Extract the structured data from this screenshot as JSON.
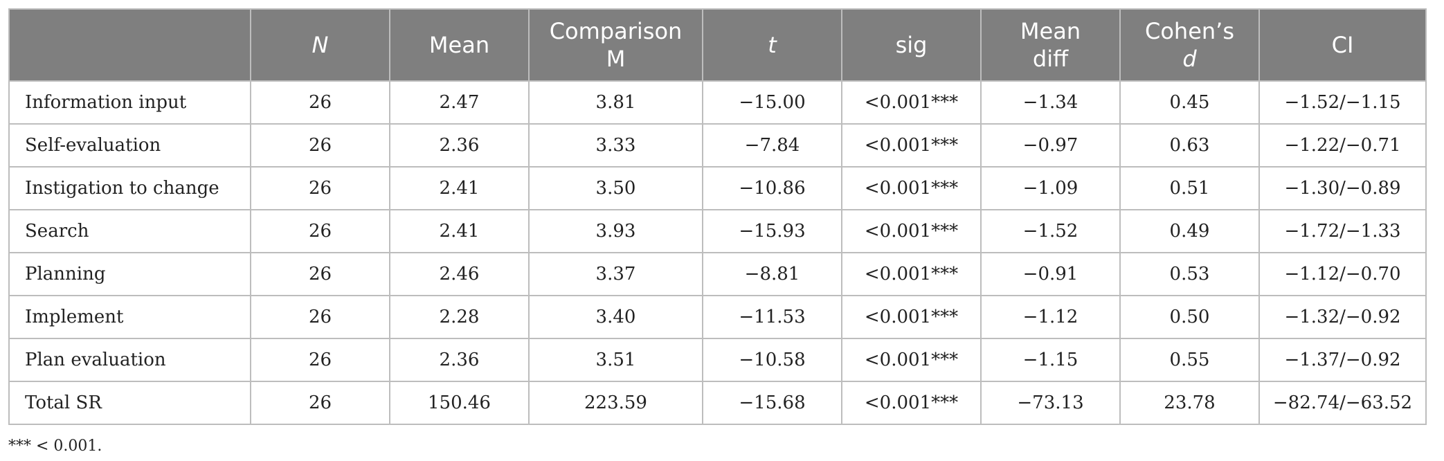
{
  "table": {
    "headers": {
      "blank": "",
      "n": "N",
      "mean": "Mean",
      "comparison_line1": "Comparison",
      "comparison_line2": "M",
      "t": "t",
      "sig": "sig",
      "mean_diff_line1": "Mean",
      "mean_diff_line2": "diff",
      "cohens_line1": "Cohen’s",
      "cohens_line2": "d",
      "ci": "CI"
    },
    "rows": [
      {
        "label": "Information input",
        "n": "26",
        "mean": "2.47",
        "comparison": "3.81",
        "t": "−15.00",
        "sig": "<0.001***",
        "mean_diff": "−1.34",
        "cohens_d": "0.45",
        "ci": "−1.52/−1.15"
      },
      {
        "label": "Self-evaluation",
        "n": "26",
        "mean": "2.36",
        "comparison": "3.33",
        "t": "−7.84",
        "sig": "<0.001***",
        "mean_diff": "−0.97",
        "cohens_d": "0.63",
        "ci": "−1.22/−0.71"
      },
      {
        "label": "Instigation to change",
        "n": "26",
        "mean": "2.41",
        "comparison": "3.50",
        "t": "−10.86",
        "sig": "<0.001***",
        "mean_diff": "−1.09",
        "cohens_d": "0.51",
        "ci": "−1.30/−0.89"
      },
      {
        "label": "Search",
        "n": "26",
        "mean": "2.41",
        "comparison": "3.93",
        "t": "−15.93",
        "sig": "<0.001***",
        "mean_diff": "−1.52",
        "cohens_d": "0.49",
        "ci": "−1.72/−1.33"
      },
      {
        "label": "Planning",
        "n": "26",
        "mean": "2.46",
        "comparison": "3.37",
        "t": "−8.81",
        "sig": "<0.001***",
        "mean_diff": "−0.91",
        "cohens_d": "0.53",
        "ci": "−1.12/−0.70"
      },
      {
        "label": "Implement",
        "n": "26",
        "mean": "2.28",
        "comparison": "3.40",
        "t": "−11.53",
        "sig": "<0.001***",
        "mean_diff": "−1.12",
        "cohens_d": "0.50",
        "ci": "−1.32/−0.92"
      },
      {
        "label": "Plan evaluation",
        "n": "26",
        "mean": "2.36",
        "comparison": "3.51",
        "t": "−10.58",
        "sig": "<0.001***",
        "mean_diff": "−1.15",
        "cohens_d": "0.55",
        "ci": "−1.37/−0.92"
      },
      {
        "label": "Total SR",
        "n": "26",
        "mean": "150.46",
        "comparison": "223.59",
        "t": "−15.68",
        "sig": "<0.001***",
        "mean_diff": "−73.13",
        "cohens_d": "23.78",
        "ci": "−82.74/−63.52"
      }
    ]
  },
  "footnote": "*** < 0.001.",
  "colors": {
    "header_bg": "#7f7f7f",
    "header_text": "#ffffff",
    "border": "#bdbdbd",
    "body_text": "#222222"
  }
}
